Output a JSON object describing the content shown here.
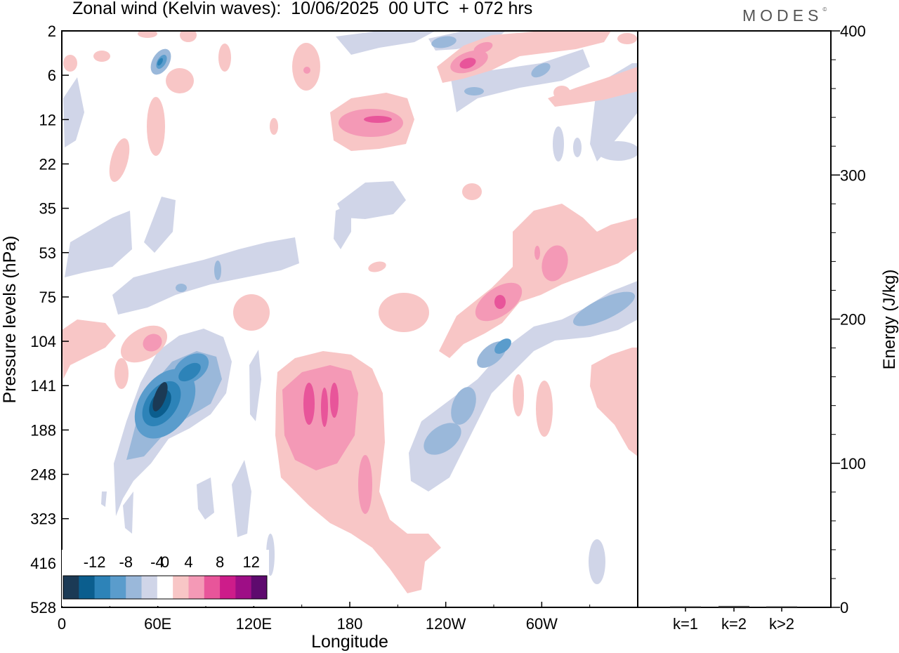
{
  "header": {
    "title": "Zonal wind (Kelvin waves):  10/06/2025  00 UTC  + 072 hrs",
    "brand": "MODES",
    "brand_mark": "©"
  },
  "chart_data": [
    {
      "type": "heatmap",
      "title": "Zonal wind (Kelvin waves):  10/06/2025  00 UTC  + 072 hrs",
      "xlabel": "Longitude",
      "ylabel": "Pressure levels (hPa)",
      "x_ticks": [
        "0",
        "60E",
        "120E",
        "180",
        "120W",
        "60W"
      ],
      "x_tick_values": [
        0,
        60,
        120,
        180,
        240,
        300
      ],
      "xlim": [
        0,
        360
      ],
      "y_ticks": [
        "2",
        "6",
        "12",
        "22",
        "35",
        "53",
        "75",
        "104",
        "141",
        "188",
        "248",
        "323",
        "416",
        "528"
      ],
      "y_scale": "model levels (top 2 hPa, bottom 528 hPa, evenly spaced ticks)",
      "grid": false,
      "colorbar": {
        "placement": "bottom-left",
        "tick_labels": [
          "-12",
          "-8",
          "-4",
          "0",
          "4",
          "8",
          "12"
        ],
        "levels": [
          -14,
          -12,
          -10,
          -8,
          -6,
          -4,
          -2,
          2,
          4,
          6,
          8,
          10,
          12,
          14
        ],
        "colors": [
          "#1b3a55",
          "#0b5e8e",
          "#2d83b8",
          "#5a9ccc",
          "#9ab8da",
          "#d0d5e8",
          "#ffffff",
          "#f8c6c6",
          "#f499b6",
          "#e8559a",
          "#cd1c8a",
          "#9e0e86",
          "#5e0a6e"
        ]
      },
      "features": [
        {
          "sign": "negative",
          "peak": -13,
          "lon": 64,
          "level_hpa": 141
        },
        {
          "sign": "negative",
          "peak": -7,
          "lon": 62,
          "level_hpa": 4
        },
        {
          "sign": "negative",
          "peak": -5,
          "lon": 340,
          "level_hpa": 90
        },
        {
          "sign": "negative",
          "peak": -5,
          "lon": 250,
          "level_hpa": 188
        },
        {
          "sign": "positive",
          "peak": 9,
          "lon": 160,
          "level_hpa": 150
        },
        {
          "sign": "positive",
          "peak": 9,
          "lon": 275,
          "level_hpa": 80
        },
        {
          "sign": "positive",
          "peak": 9,
          "lon": 250,
          "level_hpa": 5
        },
        {
          "sign": "positive",
          "peak": 7,
          "lon": 200,
          "level_hpa": 12
        },
        {
          "sign": "positive",
          "peak": 6,
          "lon": 305,
          "level_hpa": 60
        }
      ]
    },
    {
      "type": "bar",
      "ylabel": "Energy (J/kg)",
      "categories": [
        "k=1",
        "k=2",
        "k>2"
      ],
      "values": [
        0.5,
        1,
        0.5
      ],
      "ylim": [
        0,
        400
      ],
      "y_ticks": [
        "0",
        "100",
        "200",
        "300",
        "400"
      ],
      "colors": {
        "bars": "#444444"
      }
    }
  ]
}
